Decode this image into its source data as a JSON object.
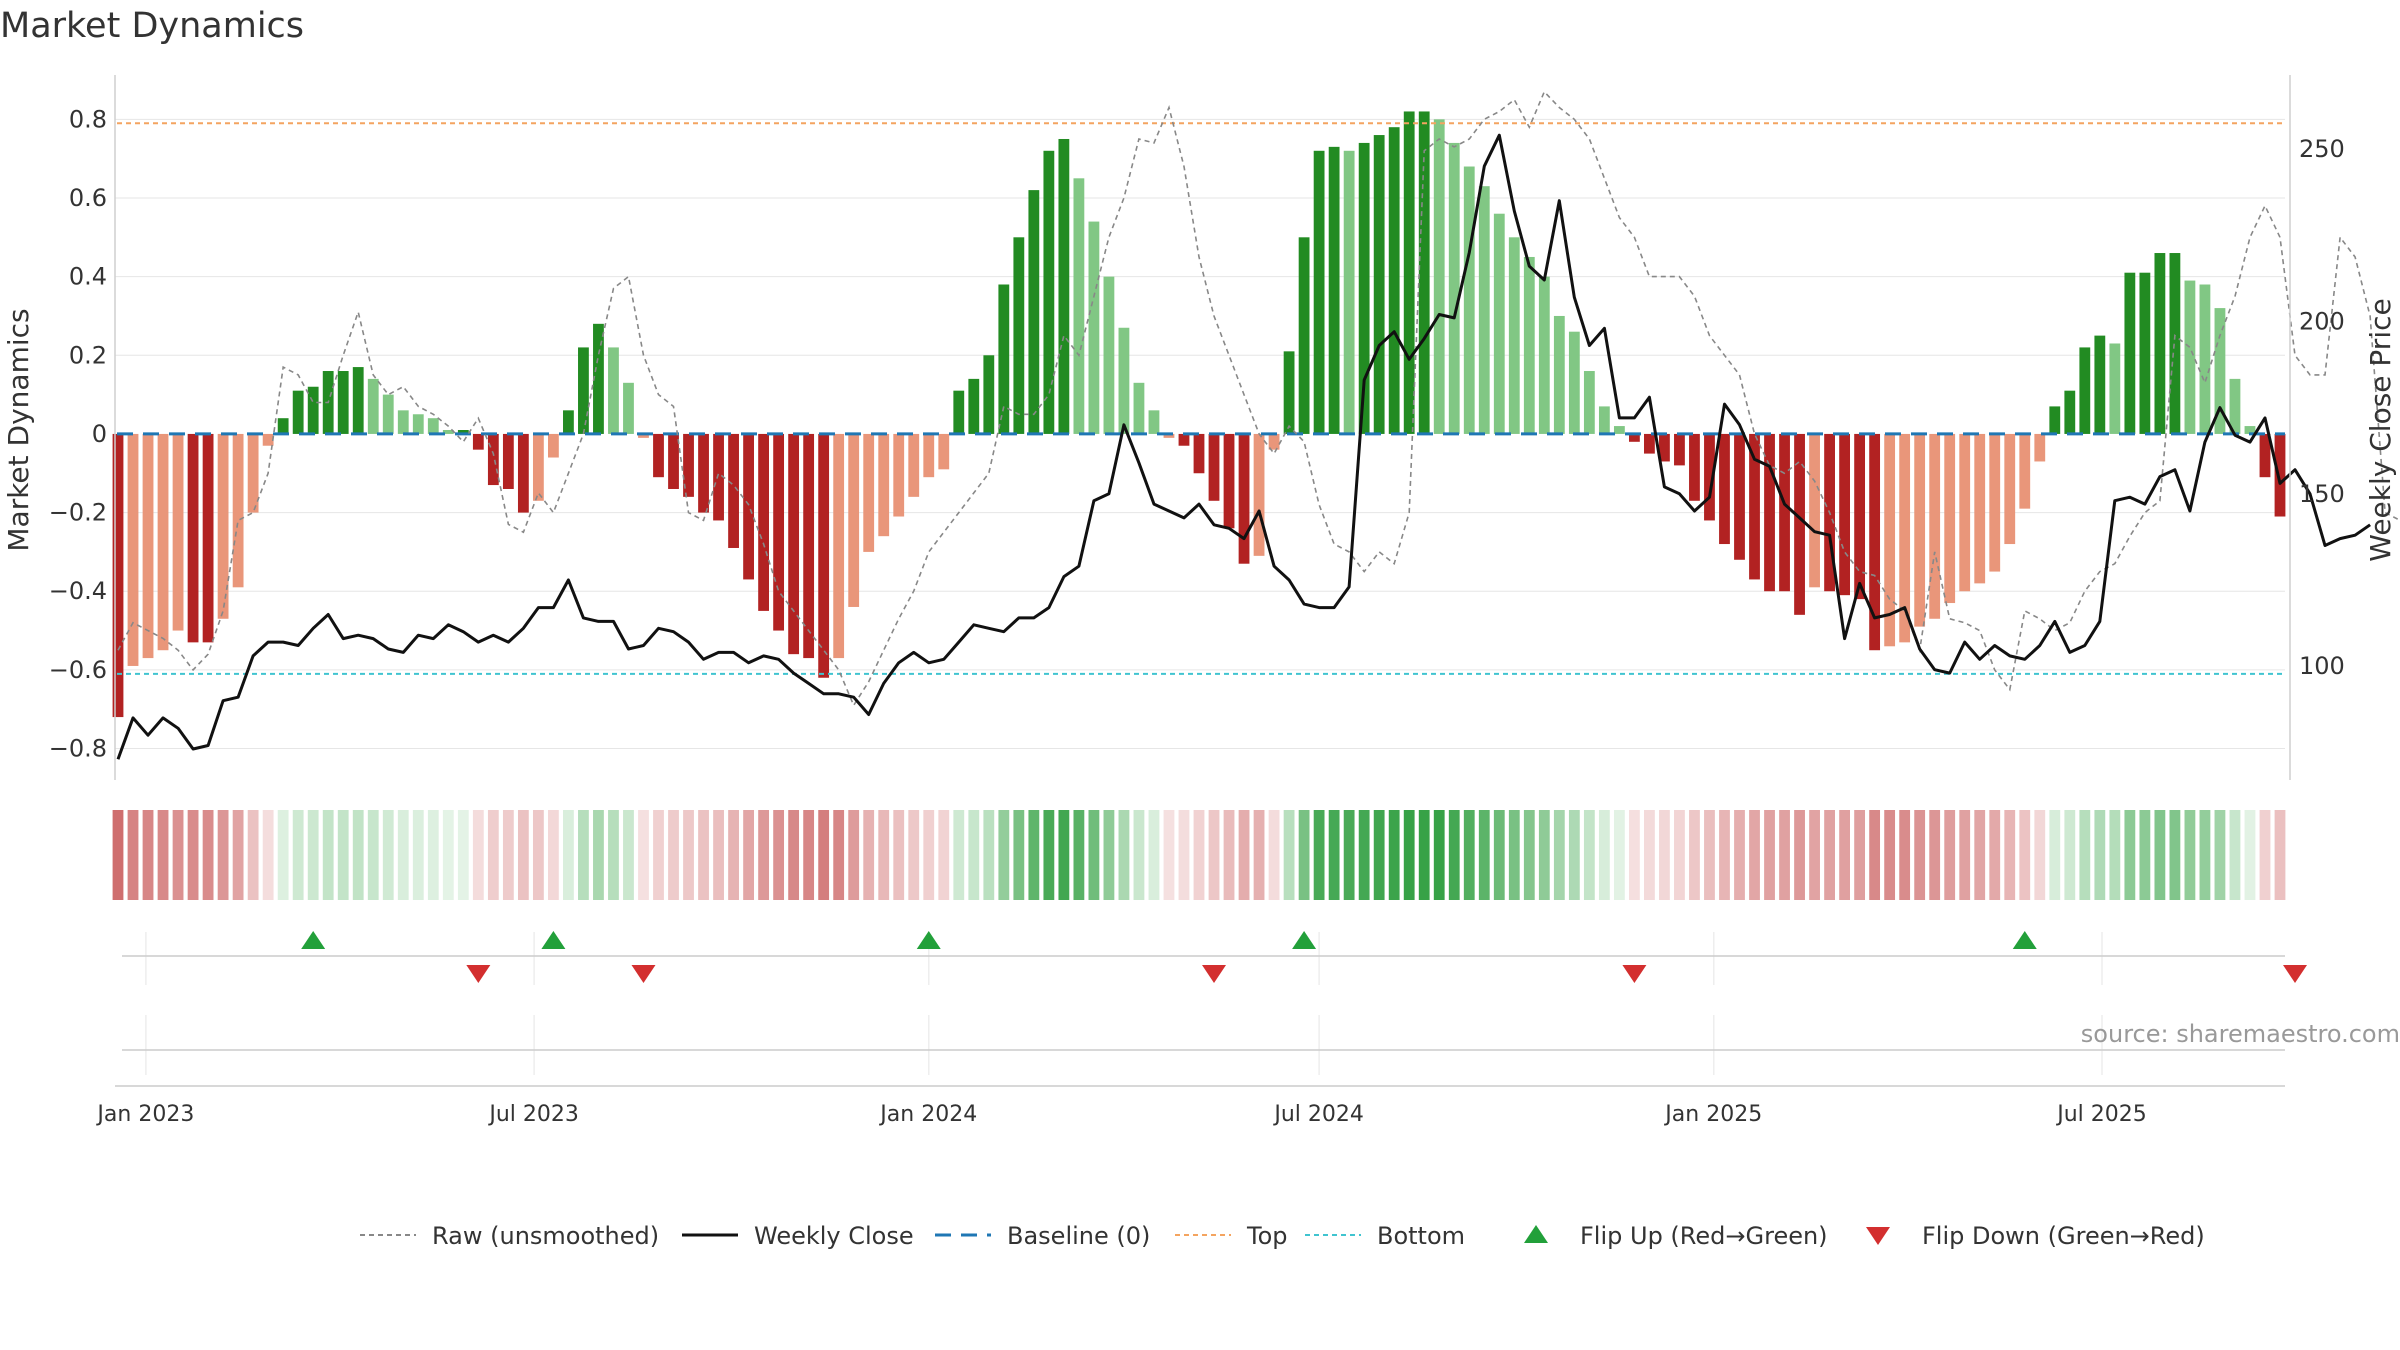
{
  "title": "Market Dynamics",
  "source": "source: sharemaestro.com",
  "colors": {
    "strong_green": "#228b22",
    "light_green": "#81c784",
    "strong_red": "#b22222",
    "light_red": "#e9967a",
    "close_line": "#111111",
    "raw_line": "#888888",
    "baseline": "#1f77b4",
    "top": "#f4a460",
    "bottom": "#40c4d0",
    "flip_up": "#22a03a",
    "flip_down": "#d32f2f"
  },
  "chart_data": {
    "type": "bar",
    "title": "Market Dynamics",
    "ylabel": "Market Dynamics",
    "y2label": "Weekly Close Price",
    "ylim": [
      -0.88,
      0.9
    ],
    "y2lim": [
      67,
      270
    ],
    "yticks": [
      -0.8,
      -0.6,
      -0.4,
      -0.2,
      0,
      0.2,
      0.4,
      0.6,
      0.8
    ],
    "y2ticks": [
      100,
      150,
      200,
      250
    ],
    "xticks": [
      {
        "date": "2023-01-01",
        "label": "Jan 2023"
      },
      {
        "date": "2023-07-01",
        "label": "Jul 2023"
      },
      {
        "date": "2024-01-01",
        "label": "Jan 2024"
      },
      {
        "date": "2024-07-01",
        "label": "Jul 2024"
      },
      {
        "date": "2025-01-01",
        "label": "Jan 2025"
      },
      {
        "date": "2025-07-01",
        "label": "Jul 2025"
      }
    ],
    "start_date": "2022-12-19",
    "top_level": 0.79,
    "bottom_level": -0.61,
    "series": [
      {
        "name": "Raw (unsmoothed)",
        "values": [
          -0.55,
          -0.48,
          -0.5,
          -0.52,
          -0.55,
          -0.6,
          -0.56,
          -0.45,
          -0.22,
          -0.2,
          -0.1,
          0.17,
          0.15,
          0.08,
          0.08,
          0.2,
          0.31,
          0.15,
          0.1,
          0.12,
          0.07,
          0.05,
          0.02,
          -0.02,
          0.04,
          -0.05,
          -0.23,
          -0.25,
          -0.15,
          -0.2,
          -0.1,
          0.0,
          0.2,
          0.37,
          0.4,
          0.2,
          0.1,
          0.07,
          -0.2,
          -0.22,
          -0.1,
          -0.13,
          -0.18,
          -0.28,
          -0.4,
          -0.45,
          -0.5,
          -0.55,
          -0.6,
          -0.69,
          -0.63,
          -0.55,
          -0.47,
          -0.4,
          -0.3,
          -0.25,
          -0.2,
          -0.15,
          -0.1,
          0.07,
          0.05,
          0.05,
          0.1,
          0.25,
          0.2,
          0.35,
          0.5,
          0.6,
          0.75,
          0.74,
          0.83,
          0.68,
          0.45,
          0.3,
          0.2,
          0.1,
          0.0,
          -0.05,
          0.02,
          -0.02,
          -0.18,
          -0.28,
          -0.3,
          -0.35,
          -0.3,
          -0.33,
          -0.2,
          0.72,
          0.75,
          0.73,
          0.75,
          0.8,
          0.82,
          0.85,
          0.78,
          0.87,
          0.83,
          0.8,
          0.75,
          0.65,
          0.55,
          0.5,
          0.4,
          0.4,
          0.4,
          0.35,
          0.25,
          0.2,
          0.15,
          0.0,
          -0.08,
          -0.1,
          -0.07,
          -0.12,
          -0.2,
          -0.3,
          -0.35,
          -0.36,
          -0.42,
          -0.45,
          -0.55,
          -0.3,
          -0.47,
          -0.48,
          -0.5,
          -0.6,
          -0.65,
          -0.45,
          -0.47,
          -0.5,
          -0.48,
          -0.4,
          -0.35,
          -0.33,
          -0.26,
          -0.2,
          -0.17,
          0.25,
          0.22,
          0.13,
          0.25,
          0.35,
          0.5,
          0.58,
          0.5,
          0.2,
          0.15,
          0.15,
          0.5,
          0.45,
          0.3,
          -0.2,
          -0.22,
          -0.22,
          -0.23
        ]
      },
      {
        "name": "Weekly Close",
        "values": [
          73,
          85,
          80,
          85,
          82,
          76,
          77,
          90,
          91,
          103,
          107,
          107,
          106,
          111,
          115,
          108,
          109,
          108,
          105,
          104,
          109,
          108,
          112,
          110,
          107,
          109,
          107,
          111,
          117,
          117,
          125,
          114,
          113,
          113,
          105,
          106,
          111,
          110,
          107,
          102,
          104,
          104,
          101,
          103,
          102,
          98,
          95,
          92,
          92,
          91,
          86,
          95,
          101,
          104,
          101,
          102,
          107,
          112,
          111,
          110,
          114,
          114,
          117,
          126,
          129,
          148,
          150,
          170,
          159,
          147,
          145,
          143,
          147,
          141,
          140,
          137,
          145,
          129,
          125,
          118,
          117,
          117,
          123,
          183,
          193,
          197,
          189,
          195,
          202,
          201,
          220,
          245,
          254,
          232,
          216,
          212,
          235,
          207,
          193,
          198,
          172,
          172,
          178,
          152,
          150,
          145,
          149,
          176,
          170,
          160,
          158,
          147,
          143,
          139,
          138,
          108,
          124,
          114,
          115,
          117,
          105,
          99,
          98,
          107,
          102,
          106,
          103,
          102,
          106,
          113,
          104,
          106,
          113,
          148,
          149,
          147,
          155,
          157,
          145,
          165,
          175,
          167,
          165,
          172,
          153,
          157,
          150,
          135,
          137,
          138,
          141
        ]
      },
      {
        "name": "Baseline (0)",
        "values": [
          0
        ]
      },
      {
        "name": "Top",
        "values": [
          0.79
        ]
      },
      {
        "name": "Bottom",
        "values": [
          -0.61
        ]
      }
    ],
    "bars": [
      -0.72,
      -0.59,
      -0.57,
      -0.55,
      -0.5,
      -0.53,
      -0.53,
      -0.47,
      -0.39,
      -0.2,
      -0.03,
      0.04,
      0.11,
      0.12,
      0.16,
      0.16,
      0.17,
      0.14,
      0.1,
      0.06,
      0.05,
      0.04,
      0.01,
      0.01,
      -0.04,
      -0.13,
      -0.14,
      -0.2,
      -0.17,
      -0.06,
      0.06,
      0.22,
      0.28,
      0.22,
      0.13,
      -0.01,
      -0.11,
      -0.14,
      -0.16,
      -0.2,
      -0.22,
      -0.29,
      -0.37,
      -0.45,
      -0.5,
      -0.56,
      -0.57,
      -0.62,
      -0.57,
      -0.44,
      -0.3,
      -0.26,
      -0.21,
      -0.16,
      -0.11,
      -0.09,
      0.11,
      0.14,
      0.2,
      0.38,
      0.5,
      0.62,
      0.72,
      0.75,
      0.65,
      0.54,
      0.4,
      0.27,
      0.13,
      0.06,
      -0.01,
      -0.03,
      -0.1,
      -0.17,
      -0.24,
      -0.33,
      -0.31,
      -0.04,
      0.21,
      0.5,
      0.72,
      0.73,
      0.72,
      0.74,
      0.76,
      0.78,
      0.82,
      0.82,
      0.8,
      0.74,
      0.68,
      0.63,
      0.56,
      0.5,
      0.45,
      0.4,
      0.3,
      0.26,
      0.16,
      0.07,
      0.02,
      -0.02,
      -0.05,
      -0.07,
      -0.08,
      -0.17,
      -0.22,
      -0.28,
      -0.32,
      -0.37,
      -0.4,
      -0.4,
      -0.46,
      -0.39,
      -0.4,
      -0.41,
      -0.42,
      -0.55,
      -0.54,
      -0.53,
      -0.49,
      -0.47,
      -0.43,
      -0.4,
      -0.38,
      -0.35,
      -0.28,
      -0.19,
      -0.07,
      0.07,
      0.11,
      0.22,
      0.25,
      0.23,
      0.41,
      0.41,
      0.46,
      0.46,
      0.39,
      0.38,
      0.32,
      0.14,
      0.02,
      -0.11,
      -0.21
    ]
  },
  "flips": {
    "up_dates": [
      "2023-03-20",
      "2023-07-10",
      "2024-01-01",
      "2024-06-24",
      "2025-05-26"
    ],
    "down_dates": [
      "2023-06-05",
      "2023-08-21",
      "2024-05-13",
      "2024-11-25",
      "2025-09-29"
    ]
  },
  "legend": [
    {
      "label": "Raw (unsmoothed)",
      "symbol": "raw"
    },
    {
      "label": "Weekly Close",
      "symbol": "close"
    },
    {
      "label": "Baseline (0)",
      "symbol": "baseline"
    },
    {
      "label": "Top",
      "symbol": "top"
    },
    {
      "label": "Bottom",
      "symbol": "bottom"
    },
    {
      "label": "Flip Up (Red→Green)",
      "symbol": "flip_up"
    },
    {
      "label": "Flip Down (Green→Red)",
      "symbol": "flip_down"
    }
  ]
}
